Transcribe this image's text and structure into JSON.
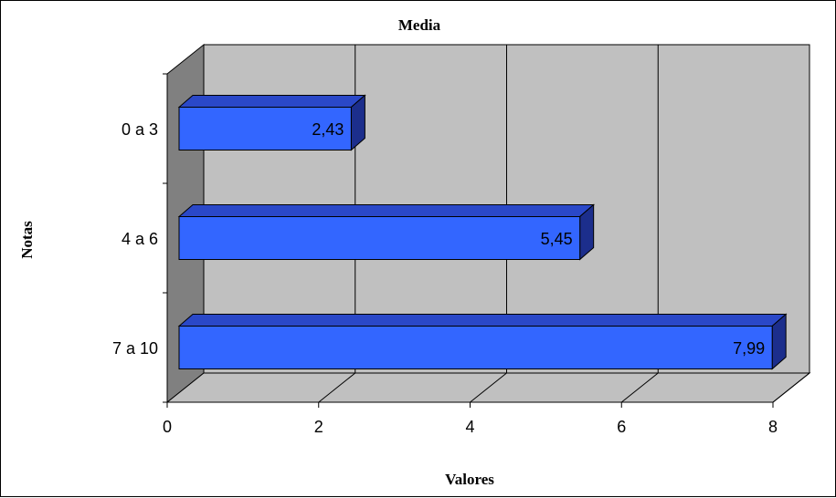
{
  "chart_data": {
    "type": "bar",
    "orientation": "horizontal",
    "three_d": true,
    "title": "Media",
    "xlabel": "Valores",
    "ylabel": "Notas",
    "categories": [
      "7 a 10",
      "4 a 6",
      "0 a 3"
    ],
    "values": [
      7.99,
      5.45,
      2.43
    ],
    "data_labels": [
      "7,99",
      "5,45",
      "2,43"
    ],
    "x_ticks": [
      "0",
      "2",
      "4",
      "6",
      "8"
    ],
    "xlim": [
      0,
      8
    ],
    "grid": true,
    "legend": "none",
    "colors": {
      "bar_front": "#3366FF",
      "bar_top": "#2A48C8",
      "bar_side": "#1C2E8C",
      "back_wall": "#C0C0C0",
      "side_wall": "#808080",
      "floor": "#C0C0C0"
    }
  }
}
